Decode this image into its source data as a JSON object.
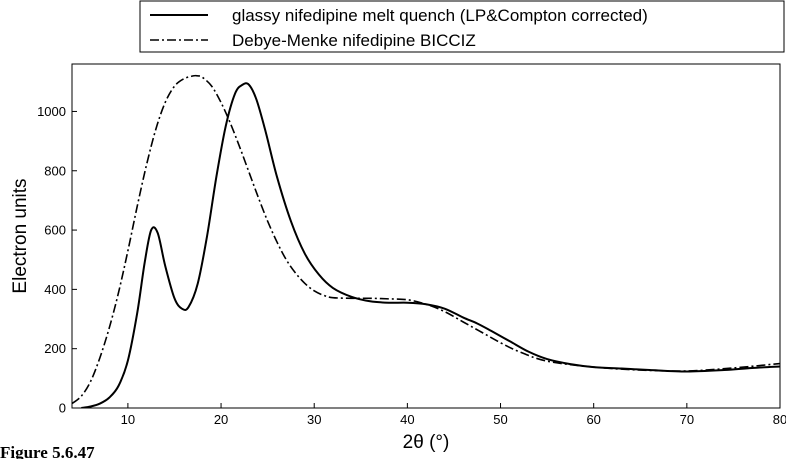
{
  "chart_data": {
    "type": "line",
    "title": "",
    "xlabel": "2θ (°)",
    "ylabel": "Electron units",
    "xlim": [
      4,
      80
    ],
    "ylim": [
      0,
      1160
    ],
    "x_ticks": [
      10,
      20,
      30,
      40,
      50,
      60,
      70,
      80
    ],
    "y_ticks": [
      0,
      200,
      400,
      600,
      800,
      1000
    ],
    "grid": false,
    "legend_position": "top",
    "caption": "Figure 5.6.47",
    "series": [
      {
        "name": "glassy nifedipine melt quench (LP&Compton corrected)",
        "style": "solid",
        "color": "#000000",
        "x": [
          5,
          6,
          7,
          8,
          9,
          10,
          11,
          11.8,
          12.5,
          13.2,
          14,
          15,
          15.8,
          16.5,
          17.5,
          18.5,
          19.5,
          20.5,
          21.5,
          22.3,
          23,
          23.8,
          24.8,
          26,
          27.5,
          29,
          30.5,
          32,
          34,
          36,
          38,
          40,
          42,
          44,
          46,
          47.5,
          49,
          51,
          53,
          55,
          57.5,
          60,
          63,
          66,
          70,
          74,
          77,
          80
        ],
        "y": [
          0,
          5,
          15,
          35,
          75,
          160,
          320,
          490,
          600,
          590,
          480,
          370,
          335,
          340,
          420,
          580,
          780,
          950,
          1060,
          1090,
          1090,
          1040,
          930,
          780,
          630,
          520,
          450,
          405,
          375,
          360,
          355,
          355,
          350,
          335,
          305,
          285,
          260,
          225,
          190,
          165,
          148,
          138,
          133,
          128,
          123,
          128,
          135,
          140
        ]
      },
      {
        "name": "Debye-Menke nifedipine BICCIZ",
        "style": "dashdot",
        "color": "#000000",
        "x": [
          4,
          5,
          6,
          7,
          8,
          9,
          10,
          11,
          12,
          13,
          14,
          15,
          16,
          17,
          17.5,
          18,
          19,
          20,
          21,
          22,
          23,
          24,
          25,
          26,
          27,
          28,
          29,
          30,
          31,
          32,
          34,
          36,
          38,
          40,
          42,
          44,
          46,
          48,
          50,
          52,
          55,
          60,
          65,
          70,
          75,
          80
        ],
        "y": [
          15,
          40,
          90,
          170,
          270,
          390,
          530,
          680,
          820,
          940,
          1030,
          1085,
          1110,
          1120,
          1120,
          1115,
          1085,
          1030,
          960,
          880,
          795,
          710,
          630,
          560,
          500,
          455,
          420,
          395,
          380,
          372,
          370,
          370,
          368,
          365,
          350,
          325,
          290,
          255,
          220,
          190,
          158,
          138,
          128,
          125,
          135,
          150
        ]
      }
    ]
  }
}
